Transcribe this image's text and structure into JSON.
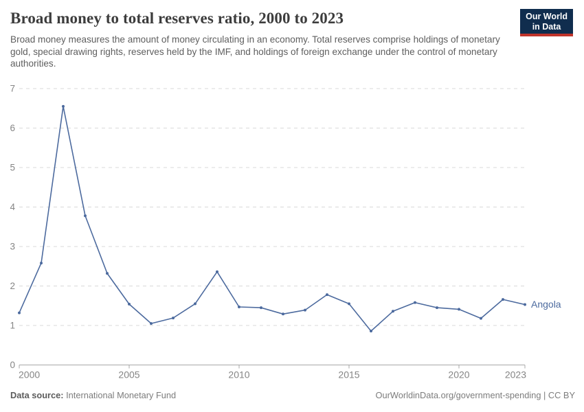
{
  "header": {
    "title": "Broad money to total reserves ratio, 2000 to 2023",
    "subtitle": "Broad money measures the amount of money circulating in an economy. Total reserves comprise holdings of monetary gold, special drawing rights, reserves held by the IMF, and holdings of foreign exchange under the control of monetary authorities.",
    "logo": {
      "line1": "Our World",
      "line2": "in Data"
    }
  },
  "footer": {
    "source_label": "Data source:",
    "source_value": "International Monetary Fund",
    "credit": "OurWorldinData.org/government-spending | CC BY"
  },
  "chart_data": {
    "type": "line",
    "title": "Broad money to total reserves ratio, 2000 to 2023",
    "xlabel": "",
    "ylabel": "",
    "xlim": [
      2000,
      2023
    ],
    "ylim": [
      0,
      7
    ],
    "x_ticks": [
      2000,
      2005,
      2010,
      2015,
      2020,
      2023
    ],
    "y_ticks": [
      0,
      1,
      2,
      3,
      4,
      5,
      6,
      7
    ],
    "grid": "horizontal-dashed",
    "legend_position": "end-of-line-label",
    "series": [
      {
        "name": "Angola",
        "color": "#4C6A9E",
        "x": [
          2000,
          2001,
          2002,
          2003,
          2004,
          2005,
          2006,
          2007,
          2008,
          2009,
          2010,
          2011,
          2012,
          2013,
          2014,
          2015,
          2016,
          2017,
          2018,
          2019,
          2020,
          2021,
          2022,
          2023
        ],
        "values": [
          1.32,
          2.58,
          6.55,
          3.78,
          2.32,
          1.54,
          1.05,
          1.19,
          1.55,
          2.36,
          1.47,
          1.45,
          1.29,
          1.39,
          1.78,
          1.55,
          0.86,
          1.36,
          1.58,
          1.45,
          1.41,
          1.18,
          1.66,
          1.53
        ]
      }
    ],
    "colors": {
      "line": "#4C6A9E",
      "gridline": "#d9d9d9",
      "axis": "#a7a7a7",
      "tick_label": "#858585"
    }
  }
}
